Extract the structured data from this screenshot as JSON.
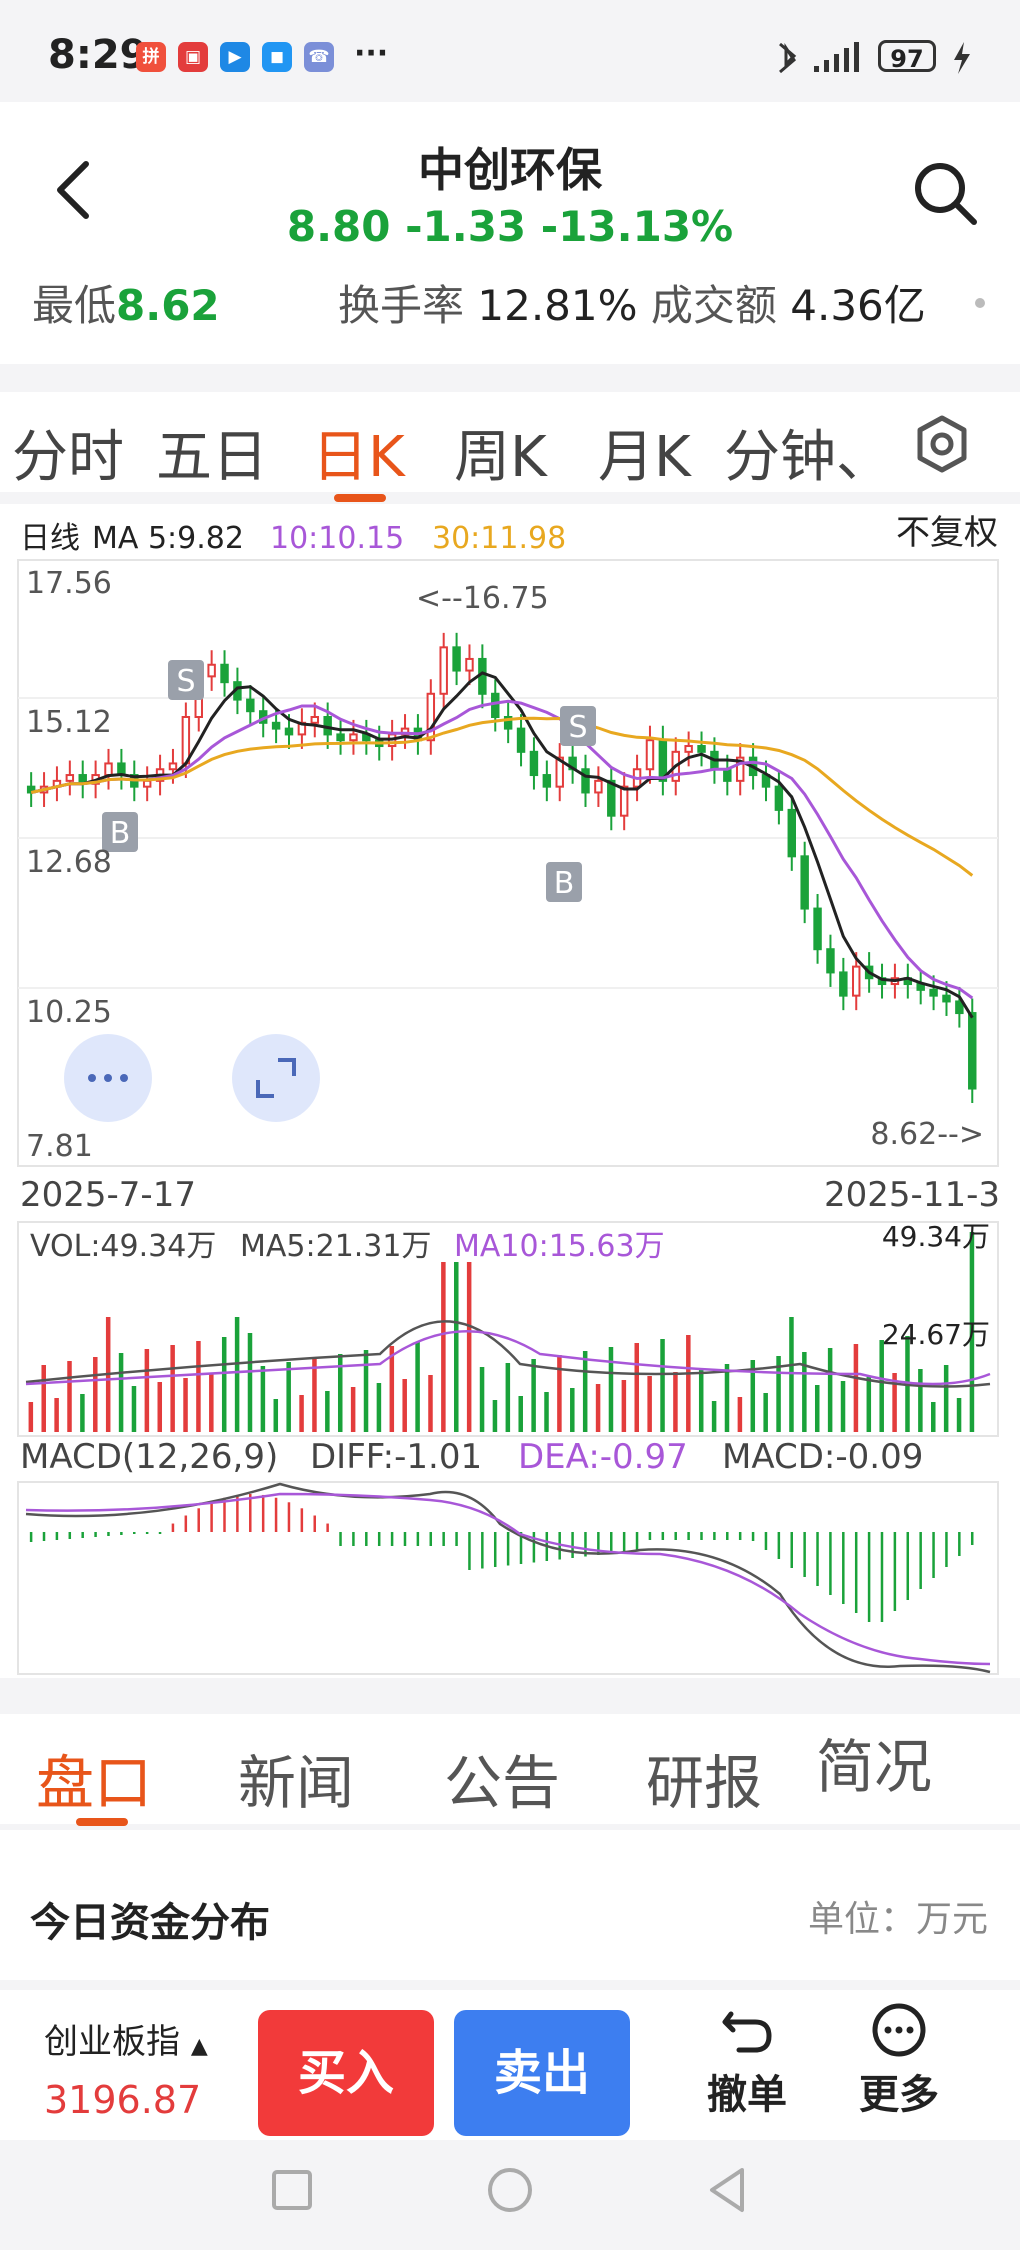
{
  "status_bar": {
    "time": "8:29",
    "battery": "97",
    "app_icons": [
      "拼",
      "▣",
      "▶",
      "◼",
      "☎"
    ],
    "more": "···"
  },
  "header": {
    "title": "中创环保",
    "quote": "8.80 -1.33 -13.13%",
    "low_label": "最低",
    "low_value": "8.62",
    "turnover_label": "换手率",
    "turnover_value": "12.81%",
    "amount_label": "成交额",
    "amount_value": "4.36亿",
    "back_icon": "back-arrow-icon",
    "search_icon": "search-icon"
  },
  "tabs": [
    {
      "label": "分时"
    },
    {
      "label": "五日"
    },
    {
      "label": "日K"
    },
    {
      "label": "周K"
    },
    {
      "label": "月K"
    },
    {
      "label": "分钟、"
    }
  ],
  "active_tab": "日K",
  "kline": {
    "title": "日线",
    "ma5": "MA 5:9.82",
    "ma10": "10:10.15",
    "ma30": "30:11.98",
    "adjust": "不复权",
    "y_labels": [
      "17.56",
      "15.12",
      "12.68",
      "10.25",
      "7.81"
    ],
    "high_marker": "<--16.75",
    "low_marker": "8.62-->",
    "date_start": "2025-7-17",
    "date_end": "2025-11-3",
    "signals": [
      "S",
      "B",
      "S",
      "B"
    ],
    "colors": {
      "up": "#e33c3c",
      "down": "#1aa23a",
      "ma5": "#222222",
      "ma10": "#a857d8",
      "ma30": "#e8a820"
    }
  },
  "volume": {
    "vol": "VOL:49.34万",
    "ma5": "MA5:21.31万",
    "ma10": "MA10:15.63万",
    "max": "49.34万",
    "mid": "24.67万"
  },
  "macd": {
    "params": "MACD(12,26,9)",
    "diff": "DIFF:-1.01",
    "dea": "DEA:-0.97",
    "macd": "MACD:-0.09"
  },
  "sub_tabs": [
    {
      "label": "盘口"
    },
    {
      "label": "新闻"
    },
    {
      "label": "公告"
    },
    {
      "label": "研报"
    },
    {
      "label": "简况"
    }
  ],
  "fund": {
    "title": "今日资金分布",
    "unit": "单位：万元"
  },
  "bottom": {
    "index_name": "创业板指",
    "index_value": "3196.87",
    "buy": "买入",
    "sell": "卖出",
    "undo": "撤单",
    "more": "更多"
  }
}
